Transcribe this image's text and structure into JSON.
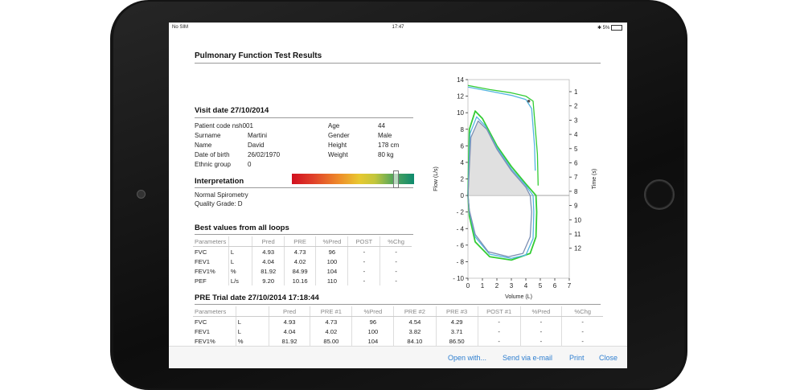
{
  "status_bar": {
    "carrier": "No SIM",
    "time": "17:47",
    "battery": "5%"
  },
  "report": {
    "title": "Pulmonary Function Test Results"
  },
  "visit": {
    "heading": "Visit date 27/10/2014",
    "patient_code": "Patient code nsh001",
    "labels": {
      "surname": "Surname",
      "name": "Name",
      "dob": "Date of birth",
      "ethnic": "Ethnic group",
      "age": "Age",
      "gender": "Gender",
      "height": "Height",
      "weight": "Weight"
    },
    "values": {
      "surname": "Martini",
      "name": "David",
      "dob": "26/02/1970",
      "ethnic": "0",
      "age": "44",
      "gender": "Male",
      "height": "178 cm",
      "weight": "80 kg"
    }
  },
  "interpretation": {
    "heading": "Interpretation",
    "line1": "Normal Spirometry",
    "line2": "Quality Grade: D",
    "scale_position": 0.85
  },
  "best": {
    "heading": "Best values from all loops",
    "headers": [
      "Parameters",
      "",
      "Pred",
      "PRE",
      "%Pred",
      "POST",
      "%Chg"
    ],
    "rows": [
      [
        "FVC",
        "L",
        "4.93",
        "4.73",
        "96",
        "-",
        "-"
      ],
      [
        "FEV1",
        "L",
        "4.04",
        "4.02",
        "100",
        "-",
        "-"
      ],
      [
        "FEV1%",
        "%",
        "81.92",
        "84.99",
        "104",
        "-",
        "-"
      ],
      [
        "PEF",
        "L/s",
        "9.20",
        "10.16",
        "110",
        "-",
        "-"
      ]
    ]
  },
  "trial": {
    "heading": "PRE Trial date 27/10/2014 17:18:44",
    "headers": [
      "Parameters",
      "",
      "Pred",
      "PRE #1",
      "%Pred",
      "PRE #2",
      "PRE #3",
      "POST #1",
      "%Pred",
      "%Chg"
    ],
    "rows": [
      [
        "FVC",
        "L",
        "4.93",
        "4.73",
        "96",
        "4.54",
        "4.29",
        "-",
        "-",
        "-"
      ],
      [
        "FEV1",
        "L",
        "4.04",
        "4.02",
        "100",
        "3.82",
        "3.71",
        "-",
        "-",
        "-"
      ],
      [
        "FEV1%",
        "%",
        "81.92",
        "85.00",
        "104",
        "84.10",
        "86.50",
        "-",
        "-",
        "-"
      ]
    ]
  },
  "chart_data": {
    "type": "line",
    "xlabel": "Volume (L)",
    "ylabel": "Flow (L/s)",
    "y2label": "Time (s)",
    "xlim": [
      0,
      7
    ],
    "ylim": [
      -10,
      14
    ],
    "y2lim": [
      1,
      12
    ],
    "x_ticks": [
      "0",
      "1",
      "2",
      "3",
      "4",
      "5",
      "6",
      "7"
    ],
    "y_ticks": [
      "14",
      "12",
      "10",
      "8",
      "6",
      "4",
      "2",
      "0",
      "- 2",
      "- 4",
      "- 6",
      "- 8",
      "- 10"
    ],
    "y2_ticks": [
      "1",
      "2",
      "3",
      "4",
      "5",
      "6",
      "7",
      "8",
      "9",
      "10",
      "11",
      "12"
    ],
    "series": [
      {
        "color": "#33cc33",
        "points": [
          [
            0,
            0
          ],
          [
            0.1,
            8
          ],
          [
            0.5,
            10.2
          ],
          [
            1,
            9.3
          ],
          [
            2,
            6
          ],
          [
            3,
            3.5
          ],
          [
            4,
            1.4
          ],
          [
            4.7,
            0
          ],
          [
            4.75,
            -2
          ],
          [
            4.7,
            -5
          ],
          [
            4.3,
            -7
          ],
          [
            3,
            -7.8
          ],
          [
            1.5,
            -7.4
          ],
          [
            0.5,
            -5.6
          ],
          [
            0.1,
            -2.5
          ],
          [
            0,
            0
          ]
        ]
      },
      {
        "color": "#55b5e0",
        "points": [
          [
            0,
            0
          ],
          [
            0.15,
            7.5
          ],
          [
            0.6,
            9.5
          ],
          [
            1.2,
            8.4
          ],
          [
            2,
            5.8
          ],
          [
            3,
            3.2
          ],
          [
            4,
            1.2
          ],
          [
            4.5,
            0
          ],
          [
            4.55,
            -2
          ],
          [
            4.5,
            -5.2
          ],
          [
            4,
            -7.2
          ],
          [
            3,
            -7.6
          ],
          [
            1.5,
            -7.1
          ],
          [
            0.5,
            -5
          ],
          [
            0.1,
            -2
          ],
          [
            0,
            0
          ]
        ]
      },
      {
        "color": "#7d8fb3",
        "points": [
          [
            0,
            0
          ],
          [
            0.2,
            7
          ],
          [
            0.7,
            9
          ],
          [
            1.3,
            8
          ],
          [
            2,
            5.6
          ],
          [
            3,
            3
          ],
          [
            4,
            1
          ],
          [
            4.3,
            0
          ],
          [
            4.4,
            -2
          ],
          [
            4.3,
            -5
          ],
          [
            3.8,
            -7
          ],
          [
            2.8,
            -7.4
          ],
          [
            1.4,
            -6.8
          ],
          [
            0.5,
            -4.7
          ],
          [
            0.1,
            -1.8
          ],
          [
            0,
            0
          ]
        ]
      },
      {
        "color": "#33cc33",
        "points": [
          [
            0,
            13.3
          ],
          [
            1.5,
            12.8
          ],
          [
            3,
            12.4
          ],
          [
            4,
            12
          ],
          [
            4.5,
            11.4
          ],
          [
            4.8,
            5
          ],
          [
            4.85,
            1.2
          ]
        ]
      },
      {
        "color": "#55b5e0",
        "points": [
          [
            0,
            13.1
          ],
          [
            1.5,
            12.6
          ],
          [
            3,
            12.1
          ],
          [
            4,
            11.6
          ],
          [
            4.4,
            10.5
          ],
          [
            4.6,
            6
          ],
          [
            4.65,
            3
          ]
        ]
      }
    ],
    "fill": [
      [
        0,
        0
      ],
      [
        0.2,
        7
      ],
      [
        0.7,
        9
      ],
      [
        1.3,
        8
      ],
      [
        2,
        5.6
      ],
      [
        3,
        3
      ],
      [
        4,
        1
      ],
      [
        4.3,
        0
      ],
      [
        0,
        0
      ]
    ],
    "point": [
      4.2,
      11.4
    ],
    "grid": false
  },
  "actions": {
    "open": "Open with...",
    "email": "Send via e-mail",
    "print": "Print",
    "close": "Close"
  }
}
